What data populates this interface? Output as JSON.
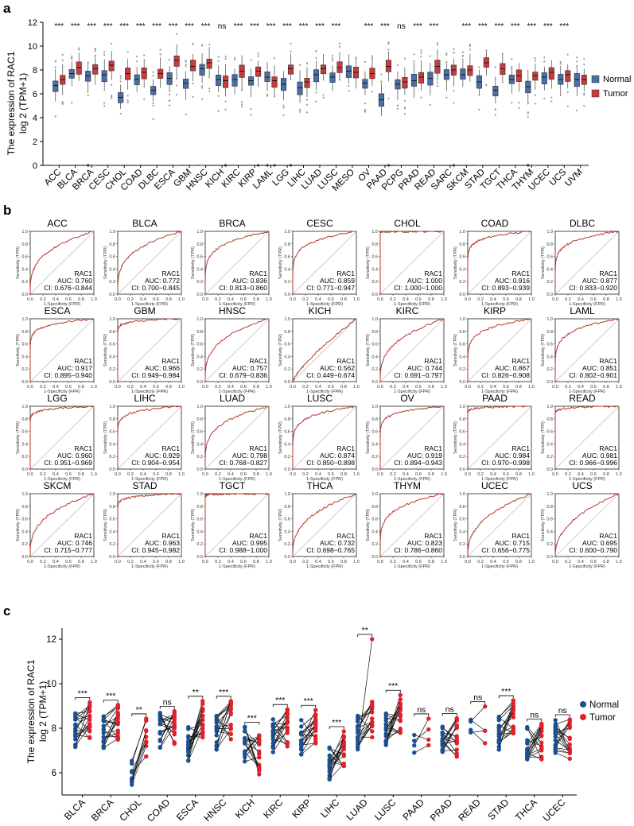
{
  "figure": {
    "panel_labels": [
      "a",
      "b",
      "c"
    ],
    "colors": {
      "normal": "#4a6fa5",
      "tumor": "#c93b3b",
      "normal_dot": "#1b4f8f",
      "tumor_dot": "#e0202b",
      "roc_line": "#b5392b",
      "diagonal": "#bfbfbf"
    }
  },
  "chart_data": [
    {
      "id": "panel_a",
      "type": "box",
      "ylabel": "The expression of RAC1",
      "ylabel2": "log 2 (TPM+1)",
      "ylim": [
        0,
        12
      ],
      "yticks": [
        0,
        2,
        4,
        6,
        8,
        10,
        12
      ],
      "legend": [
        "Normal",
        "Tumor"
      ],
      "legend_position": "right",
      "categories": [
        "ACC",
        "BLCA",
        "BRCA",
        "CESC",
        "CHOL",
        "COAD",
        "DLBC",
        "ESCA",
        "GBM",
        "HNSC",
        "KICH",
        "KIRC",
        "KIRP",
        "LAML",
        "LGG",
        "LIHC",
        "LUAD",
        "LUSC",
        "MESO",
        "OV",
        "PAAD",
        "PCPG",
        "PRAD",
        "READ",
        "SARC",
        "SKCM",
        "STAD",
        "TGCT",
        "THCA",
        "THYM",
        "UCEC",
        "UCS",
        "UVM"
      ],
      "significance": [
        "***",
        "***",
        "***",
        "***",
        "***",
        "***",
        "***",
        "***",
        "***",
        "***",
        "ns",
        "***",
        "***",
        "***",
        "***",
        "***",
        "***",
        "***",
        "",
        "***",
        "***",
        "ns",
        "***",
        "***",
        "",
        "***",
        "***",
        "***",
        "***",
        "***",
        "***",
        "***",
        ""
      ],
      "normal_median": [
        6.7,
        7.7,
        7.5,
        7.6,
        5.7,
        7.2,
        6.3,
        7.3,
        6.9,
        8.1,
        7.2,
        7.2,
        7.1,
        7.4,
        6.8,
        6.5,
        7.6,
        7.4,
        7.9,
        6.9,
        5.5,
        6.8,
        7.1,
        7.3,
        7.6,
        7.6,
        7.0,
        6.3,
        7.2,
        6.6,
        7.4,
        7.2,
        7.2
      ],
      "tumor_median": [
        7.2,
        8.2,
        8.1,
        8.4,
        7.7,
        7.8,
        7.7,
        8.8,
        8.3,
        8.6,
        7.1,
        7.9,
        7.9,
        7.1,
        8.1,
        7.0,
        8.1,
        8.2,
        7.8,
        7.7,
        8.3,
        7.0,
        7.4,
        8.3,
        8.0,
        8.0,
        8.6,
        8.1,
        7.5,
        7.5,
        7.8,
        7.6,
        7.2
      ]
    },
    {
      "id": "panel_b",
      "type": "roc",
      "xlabel": "1-Specificity (FPR)",
      "ylabel": "Sensitivity (TPR)",
      "gene": "RAC1",
      "auc_prefix": "AUC: ",
      "ci_prefix": "CI: ",
      "ticks": [
        "0.0",
        "0.2",
        "0.4",
        "0.6",
        "0.8",
        "1.0"
      ],
      "panels": [
        {
          "name": "ACC",
          "auc": "0.760",
          "ci": "0.676−0.844",
          "auc_num": 0.76
        },
        {
          "name": "BLCA",
          "auc": "0.772",
          "ci": "0.700−0.845",
          "auc_num": 0.772
        },
        {
          "name": "BRCA",
          "auc": "0.836",
          "ci": "0.813−0.860",
          "auc_num": 0.836
        },
        {
          "name": "CESC",
          "auc": "0.859",
          "ci": "0.771−0.947",
          "auc_num": 0.859
        },
        {
          "name": "CHOL",
          "auc": "1.000",
          "ci": "1.000−1.000",
          "auc_num": 1.0
        },
        {
          "name": "COAD",
          "auc": "0.916",
          "ci": "0.893−0.939",
          "auc_num": 0.916
        },
        {
          "name": "DLBC",
          "auc": "0.877",
          "ci": "0.833−0.920",
          "auc_num": 0.877
        },
        {
          "name": "ESCA",
          "auc": "0.917",
          "ci": "0.895−0.940",
          "auc_num": 0.917
        },
        {
          "name": "GBM",
          "auc": "0.966",
          "ci": "0.949−0.984",
          "auc_num": 0.966
        },
        {
          "name": "HNSC",
          "auc": "0.757",
          "ci": "0.679−0.836",
          "auc_num": 0.757
        },
        {
          "name": "KICH",
          "auc": "0.562",
          "ci": "0.449−0.674",
          "auc_num": 0.562
        },
        {
          "name": "KIRC",
          "auc": "0.744",
          "ci": "0.691−0.797",
          "auc_num": 0.744
        },
        {
          "name": "KIRP",
          "auc": "0.867",
          "ci": "0.826−0.908",
          "auc_num": 0.867
        },
        {
          "name": "LAML",
          "auc": "0.851",
          "ci": "0.802−0.901",
          "auc_num": 0.851
        },
        {
          "name": "LGG",
          "auc": "0.960",
          "ci": "0.951−0.969",
          "auc_num": 0.96
        },
        {
          "name": "LIHC",
          "auc": "0.929",
          "ci": "0.904−0.954",
          "auc_num": 0.929
        },
        {
          "name": "LUAD",
          "auc": "0.798",
          "ci": "0.768−0.827",
          "auc_num": 0.798
        },
        {
          "name": "LUSC",
          "auc": "0.874",
          "ci": "0.850−0.898",
          "auc_num": 0.874
        },
        {
          "name": "OV",
          "auc": "0.919",
          "ci": "0.894−0.943",
          "auc_num": 0.919
        },
        {
          "name": "PAAD",
          "auc": "0.984",
          "ci": "0.970−0.998",
          "auc_num": 0.984
        },
        {
          "name": "READ",
          "auc": "0.981",
          "ci": "0.966−0.996",
          "auc_num": 0.981
        },
        {
          "name": "SKCM",
          "auc": "0.746",
          "ci": "0.715−0.777",
          "auc_num": 0.746
        },
        {
          "name": "STAD",
          "auc": "0.963",
          "ci": "0.945−0.982",
          "auc_num": 0.963
        },
        {
          "name": "TGCT",
          "auc": "0.995",
          "ci": "0.988−1.000",
          "auc_num": 0.995
        },
        {
          "name": "THCA",
          "auc": "0.732",
          "ci": "0.698−0.765",
          "auc_num": 0.732
        },
        {
          "name": "THYM",
          "auc": "0.823",
          "ci": "0.786−0.860",
          "auc_num": 0.823
        },
        {
          "name": "UCEC",
          "auc": "0.715",
          "ci": "0.656−0.775",
          "auc_num": 0.715
        },
        {
          "name": "UCS",
          "auc": "0.695",
          "ci": "0.600−0.790",
          "auc_num": 0.695
        }
      ]
    },
    {
      "id": "panel_c",
      "type": "paired-dot",
      "ylabel": "The expression of RAC1",
      "ylabel2": "log 2 (TPM+1)",
      "ylim": [
        5,
        12.5
      ],
      "yticks": [
        6,
        8,
        10,
        12
      ],
      "legend": [
        "Normal",
        "Tumor"
      ],
      "legend_position": "right",
      "categories": [
        "BLCA",
        "BRCA",
        "CHOL",
        "COAD",
        "ESCA",
        "HNSC",
        "KICH",
        "KIRC",
        "KIRP",
        "LIHC",
        "LUAD",
        "LUSC",
        "PAAD",
        "PRAD",
        "READ",
        "STAD",
        "THCA",
        "UCEC"
      ],
      "significance": [
        "***",
        "***",
        "**",
        "ns",
        "**",
        "***",
        "***",
        "***",
        "***",
        "***",
        "**",
        "***",
        "ns",
        "ns",
        "ns",
        "***",
        "ns",
        "ns"
      ],
      "normal_mean": [
        7.9,
        7.8,
        5.8,
        7.9,
        7.3,
        7.8,
        7.3,
        7.6,
        7.6,
        6.4,
        7.8,
        7.9,
        7.4,
        7.3,
        7.9,
        7.8,
        7.4,
        7.6
      ],
      "tumor_mean": [
        8.3,
        8.2,
        7.6,
        8.1,
        8.4,
        8.4,
        6.8,
        8.0,
        8.1,
        7.2,
        8.3,
        8.6,
        7.9,
        7.6,
        8.2,
        8.5,
        7.4,
        7.5
      ],
      "max_tumor": [
        null,
        null,
        null,
        null,
        null,
        null,
        null,
        null,
        null,
        null,
        12.0,
        null,
        null,
        null,
        null,
        null,
        null,
        null
      ]
    }
  ]
}
